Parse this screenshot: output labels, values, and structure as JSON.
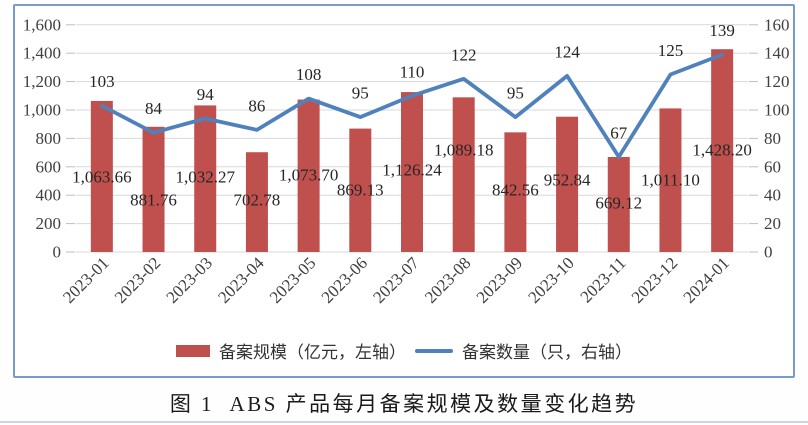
{
  "caption": {
    "text": "图 1  ABS 产品每月备案规模及数量变化趋势"
  },
  "chart_data": {
    "type": "bar",
    "title": "",
    "categories": [
      "2023-01",
      "2023-02",
      "2023-03",
      "2023-04",
      "2023-05",
      "2023-06",
      "2023-07",
      "2023-08",
      "2023-09",
      "2023-10",
      "2023-11",
      "2023-12",
      "2024-01"
    ],
    "series": [
      {
        "name": "备案规模（亿元，左轴）",
        "type": "bar",
        "axis": "left",
        "color": "#C0504D",
        "values": [
          1063.66,
          881.76,
          1032.27,
          702.78,
          1073.7,
          869.13,
          1126.24,
          1089.18,
          842.56,
          952.84,
          669.12,
          1011.1,
          1428.2
        ],
        "labels": [
          "1,063.66",
          "881.76",
          "1,032.27",
          "702.78",
          "1,073.70",
          "869.13",
          "1,126.24",
          "1,089.18",
          "842.56",
          "952.84",
          "669.12",
          "1,011.10",
          "1,428.20"
        ]
      },
      {
        "name": "备案数量（只，右轴）",
        "type": "line",
        "axis": "right",
        "color": "#4F81BD",
        "values": [
          103,
          84,
          94,
          86,
          108,
          95,
          110,
          122,
          95,
          124,
          67,
          125,
          139
        ],
        "labels": [
          "103",
          "84",
          "94",
          "86",
          "108",
          "95",
          "110",
          "122",
          "95",
          "124",
          "67",
          "125",
          "139"
        ]
      }
    ],
    "left_axis": {
      "min": 0,
      "max": 1600,
      "step": 200,
      "tick_labels": [
        "0",
        "200",
        "400",
        "600",
        "800",
        "1,000",
        "1,200",
        "1,400",
        "1,600"
      ]
    },
    "right_axis": {
      "min": 0,
      "max": 160,
      "step": 20,
      "tick_labels": [
        "0",
        "20",
        "40",
        "60",
        "80",
        "100",
        "120",
        "140",
        "160"
      ]
    },
    "grid": true,
    "legend_position": "bottom-inside",
    "layout_hints": {
      "bar_label_y": [
        171,
        194,
        171,
        194,
        169,
        184,
        164,
        144,
        184,
        174,
        197,
        174,
        144
      ],
      "line_label_offset": -24
    }
  },
  "colors": {
    "bar": "#C0504D",
    "line": "#4F81BD",
    "chart_border": "#779CC9",
    "gridline": "#D9D9D9",
    "tick_mark": "#BFBFBF",
    "axis_text": "#404040",
    "label_text": "#262626",
    "bottom_rule": "#C8D6E8"
  }
}
